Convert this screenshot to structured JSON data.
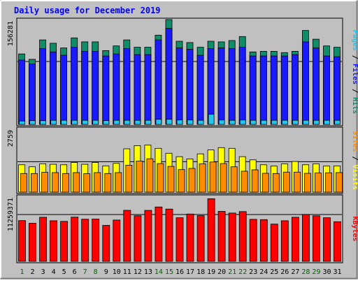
{
  "chart_data": {
    "type": "bar",
    "title": "Daily usage for December 2019",
    "categories": [
      "1",
      "2",
      "3",
      "4",
      "5",
      "6",
      "7",
      "8",
      "9",
      "10",
      "11",
      "12",
      "13",
      "14",
      "15",
      "16",
      "17",
      "18",
      "19",
      "20",
      "21",
      "22",
      "23",
      "24",
      "25",
      "26",
      "27",
      "28",
      "29",
      "30",
      "31"
    ],
    "weekend_categories": [
      "1",
      "7",
      "8",
      "14",
      "15",
      "21",
      "22",
      "28",
      "29"
    ],
    "panels": [
      {
        "name": "hits-files-pages",
        "max_label": "156281",
        "ylim": [
          0,
          156281
        ],
        "legend": [
          "Pages",
          "Files",
          "Hits"
        ],
        "legend_separator": " / ",
        "series": [
          {
            "name": "Hits",
            "color": "#0f8c68",
            "values": [
              105000,
              97000,
              126000,
              121000,
              114000,
              129000,
              123000,
              123000,
              110000,
              117000,
              126000,
              115000,
              115000,
              133000,
              156281,
              124000,
              122000,
              115000,
              124000,
              123000,
              125000,
              131000,
              108000,
              109000,
              109000,
              107000,
              109000,
              140000,
              127000,
              117000,
              115000
            ]
          },
          {
            "name": "Files",
            "color": "#1a1aff",
            "values": [
              96000,
              90000,
              113000,
              108000,
              103000,
              115000,
              109000,
              109000,
              102000,
              105000,
              113000,
              104000,
              104000,
              126000,
              143000,
              114000,
              112000,
              103000,
              113000,
              114000,
              113000,
              115000,
              102000,
              102000,
              102000,
              102000,
              104000,
              123000,
              114000,
              102000,
              101000
            ]
          },
          {
            "name": "Pages",
            "color": "#22c6ef",
            "values": [
              5000,
              5500,
              5500,
              6000,
              6000,
              6000,
              6000,
              6000,
              5500,
              6000,
              6000,
              6000,
              6000,
              7500,
              7500,
              6500,
              6500,
              6000,
              15000,
              6500,
              6000,
              6500,
              6000,
              6000,
              6000,
              6000,
              6000,
              6000,
              6000,
              6000,
              6000
            ]
          }
        ]
      },
      {
        "name": "visits-sites",
        "max_label": "2759",
        "ylim": [
          0,
          2759
        ],
        "legend": [
          "Sites",
          "Visits"
        ],
        "legend_separator": " / ",
        "series": [
          {
            "name": "Visits",
            "color": "#ffff00",
            "values": [
              1190,
              1100,
              1230,
              1210,
              1190,
              1290,
              1210,
              1290,
              1140,
              1250,
              1880,
              2020,
              2040,
              1900,
              1690,
              1540,
              1440,
              1660,
              1830,
              1930,
              1900,
              1540,
              1400,
              1190,
              1130,
              1230,
              1330,
              1190,
              1230,
              1130,
              1140
            ]
          },
          {
            "name": "Sites",
            "color": "#ff8c00",
            "values": [
              810,
              810,
              860,
              850,
              810,
              850,
              800,
              850,
              810,
              850,
              1170,
              1350,
              1450,
              1240,
              1120,
              980,
              1030,
              1230,
              1310,
              1240,
              1100,
              910,
              970,
              820,
              810,
              870,
              870,
              820,
              830,
              840,
              850
            ]
          }
        ]
      },
      {
        "name": "kbytes",
        "max_label": "11259371",
        "ylim": [
          0,
          11259371
        ],
        "legend": [
          "KBytes"
        ],
        "legend_separator": "",
        "series": [
          {
            "name": "KBytes",
            "color": "#ff0000",
            "values": [
              7060000,
              6600000,
              7640000,
              7040000,
              6930000,
              7660000,
              7300000,
              7320000,
              6240000,
              7160000,
              8840000,
              7900000,
              8820000,
              9420000,
              9050000,
              7560000,
              8200000,
              7920000,
              10850000,
              8660000,
              8360000,
              8620000,
              7280000,
              7230000,
              6450000,
              7040000,
              7640000,
              8130000,
              7890000,
              7550000,
              6860000
            ]
          }
        ]
      }
    ],
    "colors": {
      "background": "#c0c0c0",
      "frame": "#000000",
      "title": "#0000ff",
      "axis_number": "#000000",
      "day_weekday": "#000000",
      "day_weekend": "#006400"
    }
  }
}
